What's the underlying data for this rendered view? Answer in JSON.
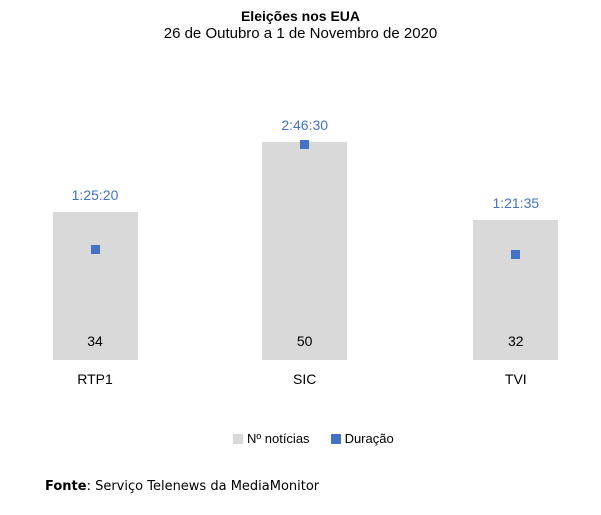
{
  "header": {
    "title": "Eleições nos EUA",
    "subtitle": "26 de Outubro a 1 de Novembro de 2020"
  },
  "chart_data": {
    "type": "bar",
    "title": "Eleições nos EUA",
    "subtitle": "26 de Outubro a 1 de Novembro de 2020",
    "xlabel": "",
    "ylabel": "",
    "categories": [
      "RTP1",
      "SIC",
      "TVI"
    ],
    "series": [
      {
        "name": "Nº notícias",
        "type": "bar",
        "values": [
          34,
          50,
          32
        ],
        "labels": [
          "34",
          "50",
          "32"
        ],
        "label_position": "inside-base",
        "color": "#d9d9d9"
      },
      {
        "name": "Duração",
        "type": "point",
        "values_hms": [
          "1:25:20",
          "2:46:30",
          "1:21:35"
        ],
        "values_seconds": [
          5120,
          9990,
          4895
        ],
        "labels": [
          "1:25:20",
          "2:46:30",
          "1:21:35"
        ],
        "label_position": "above-bar",
        "color": "#4472c4"
      }
    ],
    "grid": false,
    "axes_visible": false,
    "legend_position": "bottom"
  },
  "legend": {
    "items": [
      {
        "label": "Nº notícias",
        "color": "#d9d9d9"
      },
      {
        "label": "Duração",
        "color": "#4472c4"
      }
    ]
  },
  "footer": {
    "source_label": "Fonte",
    "source_rest": ": Serviço Telenews da MediaMonitor"
  },
  "colors": {
    "background": "#ffffff",
    "bar": "#d9d9d9",
    "duration": "#4472c4",
    "text": "#000000"
  }
}
